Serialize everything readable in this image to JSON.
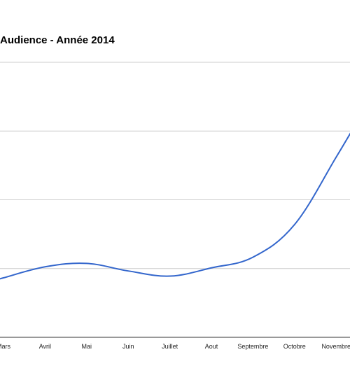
{
  "chart_data": {
    "type": "line",
    "title": "Audience - Année 2014",
    "categories": [
      "Mars",
      "Avril",
      "Mai",
      "Juin",
      "Juillet",
      "Aout",
      "Septembre",
      "Octobre",
      "Novembre"
    ],
    "series": [
      {
        "values": [
          1.73,
          2.05,
          2.15,
          1.93,
          1.78,
          2.02,
          2.33,
          3.28,
          5.24
        ]
      }
    ],
    "xlabel": "",
    "ylabel": "",
    "grid": true,
    "legend": "none",
    "colors": {
      "line": "#3366cc",
      "grid": "#cccccc",
      "axis": "#333333"
    }
  }
}
